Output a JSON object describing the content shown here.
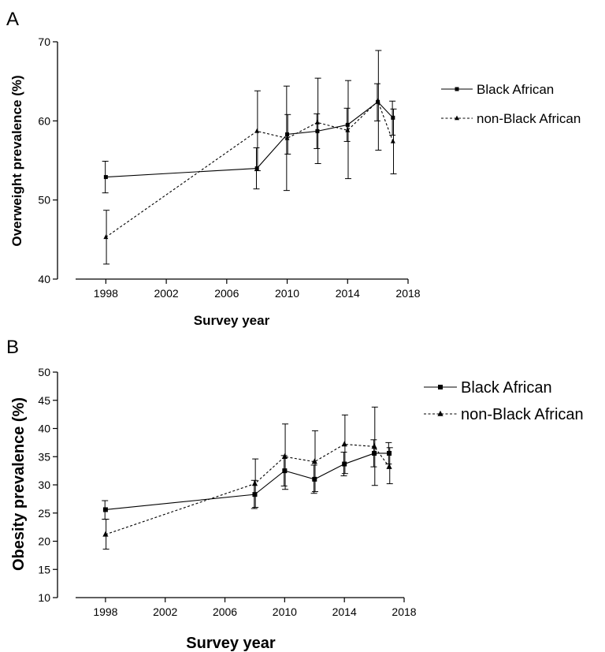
{
  "chart_data": [
    {
      "panel_label": "A",
      "type": "line",
      "xlabel": "Survey year",
      "ylabel": "Overweight prevalence (%)",
      "xlim": [
        1996,
        2018
      ],
      "ylim": [
        40,
        70
      ],
      "xticks": [
        1998,
        2002,
        2006,
        2010,
        2014,
        2018
      ],
      "yticks": [
        40,
        50,
        60,
        70
      ],
      "legend_position": "right",
      "series": [
        {
          "name": "Black African",
          "marker": "square",
          "line_style": "solid",
          "x": [
            1998,
            2008,
            2010,
            2012,
            2014,
            2016,
            2017
          ],
          "y": [
            52.9,
            54.0,
            58.3,
            58.7,
            59.5,
            62.4,
            60.4
          ],
          "err_low": [
            50.9,
            51.4,
            51.2,
            56.5,
            57.4,
            60.0,
            58.2
          ],
          "err_high": [
            54.9,
            56.6,
            64.4,
            60.9,
            61.6,
            64.7,
            62.5
          ]
        },
        {
          "name": "non-Black African",
          "marker": "triangle",
          "line_style": "dotted",
          "x": [
            1998,
            2008,
            2010,
            2012,
            2014,
            2016,
            2017
          ],
          "y": [
            45.3,
            58.7,
            57.8,
            59.8,
            58.8,
            62.5,
            57.4
          ],
          "err_low": [
            41.9,
            53.7,
            55.8,
            54.6,
            52.7,
            56.3,
            53.3
          ],
          "err_high": [
            48.7,
            63.8,
            60.8,
            65.4,
            65.1,
            68.9,
            61.5
          ]
        }
      ]
    },
    {
      "panel_label": "B",
      "type": "line",
      "xlabel": "Survey year",
      "ylabel": "Obesity prevalence (%)",
      "xlim": [
        1996,
        2018
      ],
      "ylim": [
        10,
        50
      ],
      "xticks": [
        1998,
        2002,
        2006,
        2010,
        2014,
        2018
      ],
      "yticks": [
        10,
        15,
        20,
        25,
        30,
        35,
        40,
        45,
        50
      ],
      "legend_position": "right",
      "series": [
        {
          "name": "Black African",
          "marker": "square",
          "line_style": "solid",
          "x": [
            1998,
            2008,
            2010,
            2012,
            2014,
            2016,
            2017
          ],
          "y": [
            25.6,
            28.3,
            32.5,
            31.0,
            33.7,
            35.6,
            35.6
          ],
          "err_low": [
            23.9,
            25.8,
            29.8,
            28.5,
            31.6,
            33.2,
            33.7
          ],
          "err_high": [
            27.2,
            30.8,
            35.2,
            33.5,
            35.8,
            38.0,
            37.5
          ]
        },
        {
          "name": "non-Black African",
          "marker": "triangle",
          "line_style": "dotted",
          "x": [
            1998,
            2008,
            2010,
            2012,
            2014,
            2016,
            2017
          ],
          "y": [
            21.2,
            30.2,
            35.0,
            34.1,
            37.2,
            36.8,
            33.2
          ],
          "err_low": [
            18.6,
            26.0,
            29.2,
            28.8,
            32.0,
            29.9,
            30.2
          ],
          "err_high": [
            23.9,
            34.6,
            40.8,
            39.6,
            42.4,
            43.8,
            36.6
          ]
        }
      ]
    }
  ]
}
